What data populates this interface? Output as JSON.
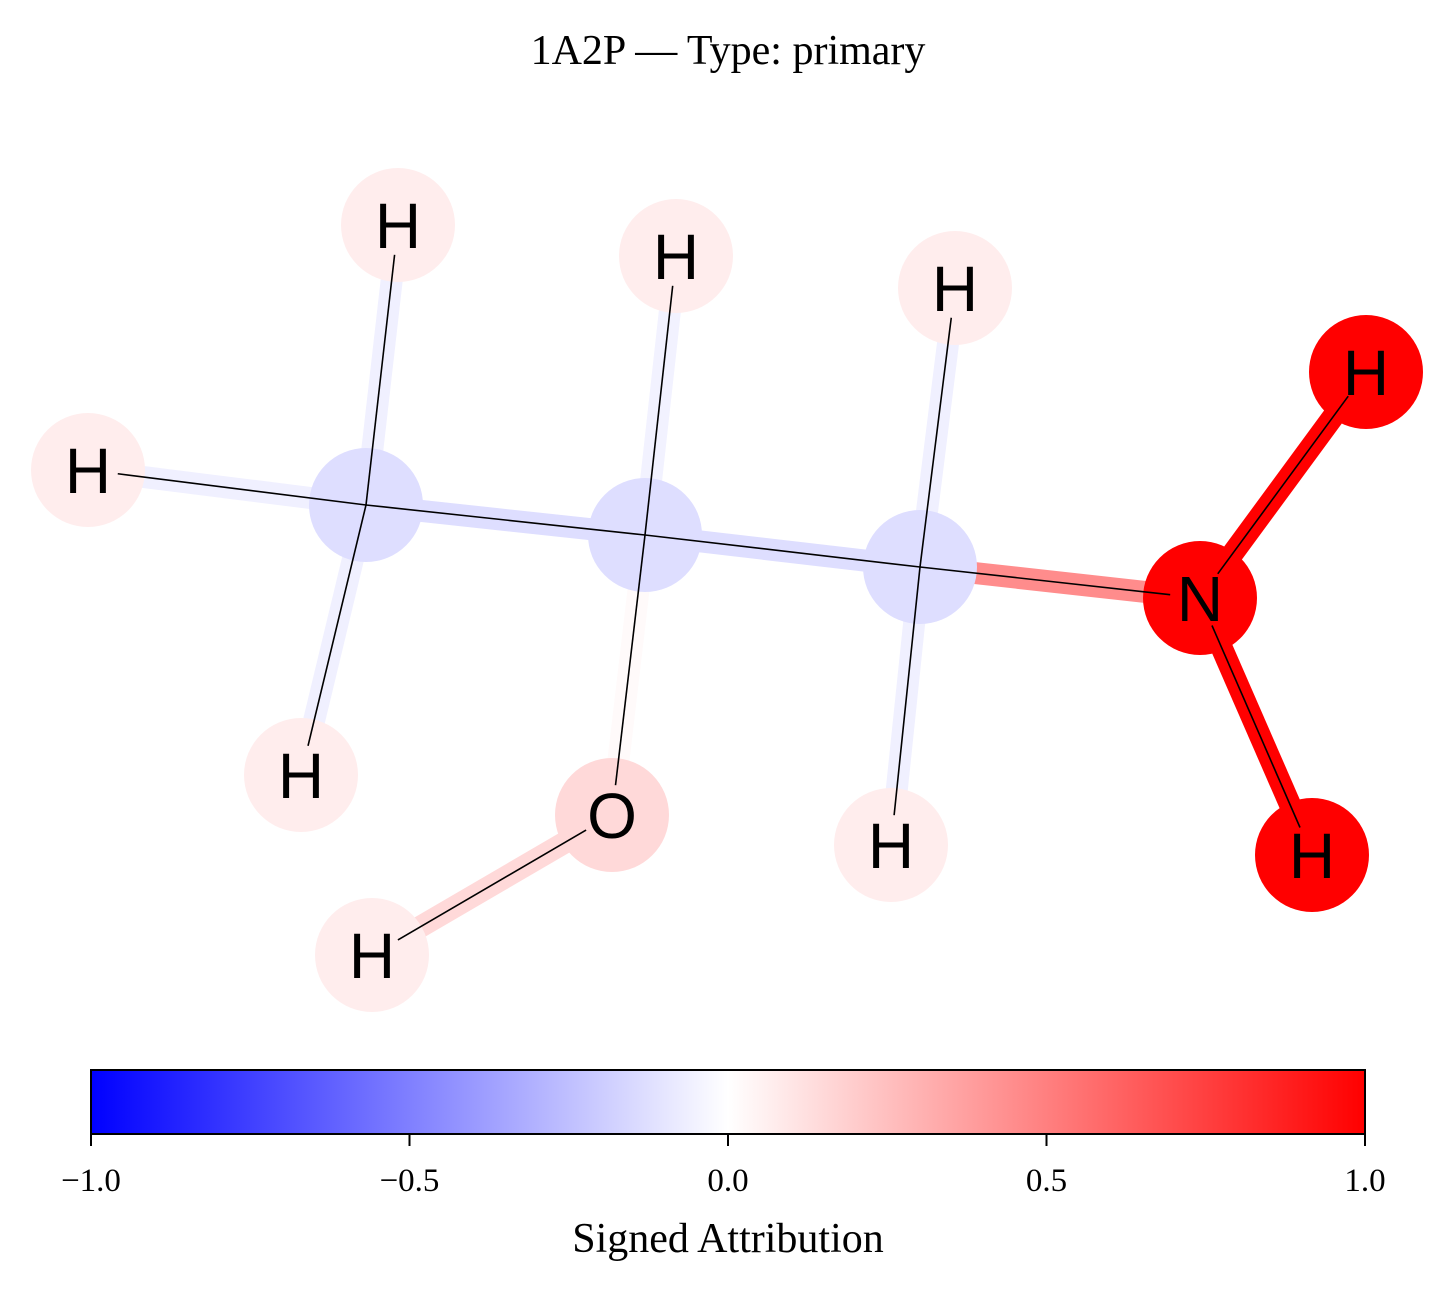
{
  "title": "1A2P — Type: primary",
  "colormap": {
    "negative": "#0000ff",
    "zero": "#ffffff",
    "positive": "#ff0000"
  },
  "molecule": {
    "atoms": [
      {
        "id": 0,
        "element": "C",
        "label": "",
        "attribution": -0.13
      },
      {
        "id": 1,
        "element": "C",
        "label": "",
        "attribution": -0.13
      },
      {
        "id": 2,
        "element": "C",
        "label": "",
        "attribution": -0.13
      },
      {
        "id": 3,
        "element": "N",
        "label": "N",
        "attribution": 1.0
      },
      {
        "id": 4,
        "element": "O",
        "label": "O",
        "attribution": 0.15
      },
      {
        "id": 5,
        "element": "H",
        "label": "H",
        "attribution": 0.07
      },
      {
        "id": 6,
        "element": "H",
        "label": "H",
        "attribution": 0.07
      },
      {
        "id": 7,
        "element": "H",
        "label": "H",
        "attribution": 0.07
      },
      {
        "id": 8,
        "element": "H",
        "label": "H",
        "attribution": 0.07
      },
      {
        "id": 9,
        "element": "H",
        "label": "H",
        "attribution": 0.07
      },
      {
        "id": 10,
        "element": "H",
        "label": "H",
        "attribution": 0.07
      },
      {
        "id": 11,
        "element": "H",
        "label": "H",
        "attribution": 0.07
      },
      {
        "id": 12,
        "element": "H",
        "label": "H",
        "attribution": 1.0
      },
      {
        "id": 13,
        "element": "H",
        "label": "H",
        "attribution": 1.0
      }
    ],
    "bonds": [
      {
        "a": 0,
        "b": 5,
        "attribution": -0.06
      },
      {
        "a": 0,
        "b": 6,
        "attribution": -0.06
      },
      {
        "a": 0,
        "b": 7,
        "attribution": -0.06
      },
      {
        "a": 0,
        "b": 1,
        "attribution": -0.13
      },
      {
        "a": 1,
        "b": 8,
        "attribution": -0.05
      },
      {
        "a": 1,
        "b": 4,
        "attribution": 0.02
      },
      {
        "a": 1,
        "b": 2,
        "attribution": -0.13
      },
      {
        "a": 2,
        "b": 9,
        "attribution": -0.06
      },
      {
        "a": 2,
        "b": 10,
        "attribution": -0.06
      },
      {
        "a": 2,
        "b": 3,
        "attribution": 0.45
      },
      {
        "a": 3,
        "b": 12,
        "attribution": 1.0
      },
      {
        "a": 3,
        "b": 13,
        "attribution": 1.0
      },
      {
        "a": 4,
        "b": 11,
        "attribution": 0.15
      }
    ]
  },
  "colorbar": {
    "label": "Signed Attribution",
    "vmin": -1.0,
    "vmax": 1.0,
    "ticks": [
      -1.0,
      -0.5,
      0.0,
      0.5,
      1.0
    ],
    "tick_labels": [
      "−1.0",
      "−0.5",
      "0.0",
      "0.5",
      "1.0"
    ]
  }
}
